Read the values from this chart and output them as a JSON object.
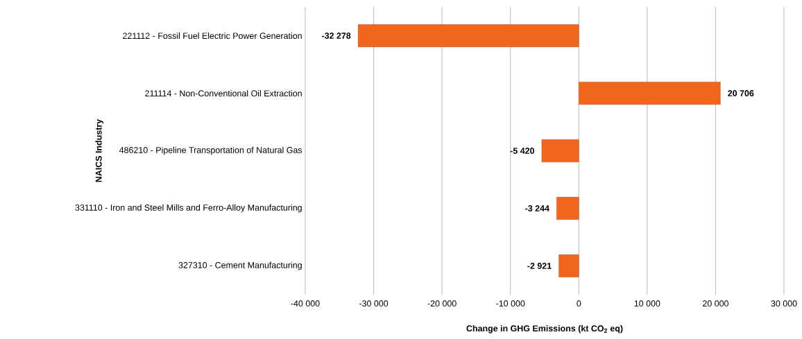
{
  "chart_data": {
    "type": "bar",
    "orientation": "horizontal",
    "xlabel": "**Change in GHG Emissions (kt CO$_{2}$ eq)**",
    "ylabel": "**NAICS Industry**",
    "categories": [
      "221112 - Fossil Fuel Electric Power Generation",
      "211114 - Non-Conventional Oil Extraction",
      "486210 - Pipeline Transportation of Natural Gas",
      "331110 - Iron and Steel Mills and Ferro-Alloy Manufacturing",
      "327310 - Cement Manufacturing"
    ],
    "values": [
      -32278,
      20706,
      -5420,
      -3244,
      -2921
    ],
    "value_labels": [
      "-32 278",
      "20 706",
      "-5 420",
      "-3 244",
      "-2 921"
    ],
    "color": "#f0661e",
    "xlim": [
      -40000,
      30000
    ],
    "xticks": [
      {
        "value": -40000,
        "label": "-40 000"
      },
      {
        "value": -30000,
        "label": "-30 000"
      },
      {
        "value": -20000,
        "label": "-20 000"
      },
      {
        "value": -10000,
        "label": "-10 000"
      },
      {
        "value": 0,
        "label": "0"
      },
      {
        "value": 10000,
        "label": "10 000"
      },
      {
        "value": 20000,
        "label": "20 000"
      },
      {
        "value": 30000,
        "label": "30 000"
      }
    ],
    "grid": "x"
  }
}
